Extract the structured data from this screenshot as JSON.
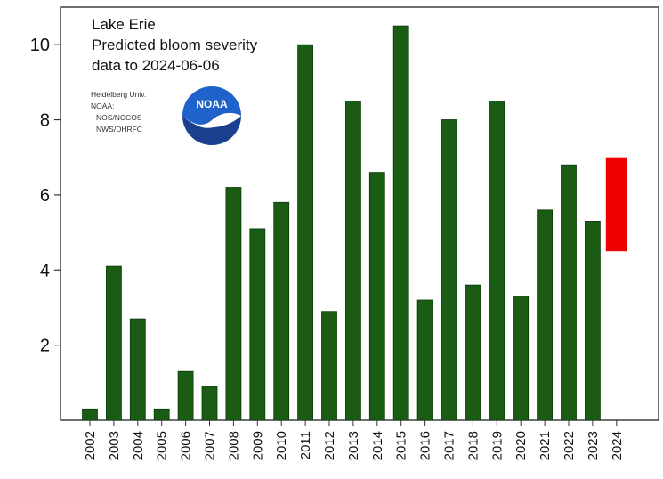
{
  "chart_data": {
    "type": "bar",
    "title_lines": [
      "Lake Erie",
      "Predicted bloom severity",
      "data to 2024-06-06"
    ],
    "institutions": [
      "Heidelberg Univ.",
      "NOAA:",
      "NOS/NCCOS",
      "NWS/DHRFC"
    ],
    "logo": {
      "text": "NOAA",
      "icon": "noaa-logo-icon"
    },
    "categories": [
      "2002",
      "2003",
      "2004",
      "2005",
      "2006",
      "2007",
      "2008",
      "2009",
      "2010",
      "2011",
      "2012",
      "2013",
      "2014",
      "2015",
      "2016",
      "2017",
      "2018",
      "2019",
      "2020",
      "2021",
      "2022",
      "2023",
      "2024"
    ],
    "values": [
      0.3,
      4.1,
      2.7,
      0.3,
      1.3,
      0.9,
      6.2,
      5.1,
      5.8,
      10.0,
      2.9,
      8.5,
      6.6,
      10.5,
      3.2,
      8.0,
      3.6,
      8.5,
      3.3,
      5.6,
      6.8,
      5.3,
      null
    ],
    "forecast": {
      "category": "2024",
      "low": 4.5,
      "high": 7.0
    },
    "yticks": [
      2,
      4,
      6,
      8,
      10
    ],
    "ylim": [
      0,
      11
    ],
    "xlabel": "",
    "ylabel": "",
    "grid": false,
    "colors": {
      "bar": "#1a5c14",
      "bar_edge": "#0d3b0a",
      "forecast": "#ee0000",
      "axis": "#333333"
    }
  }
}
